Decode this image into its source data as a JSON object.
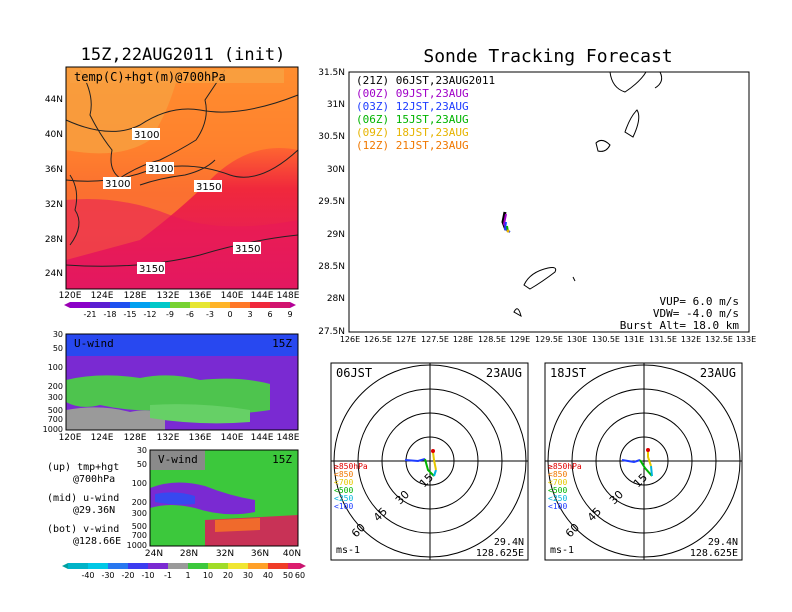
{
  "left": {
    "title": "15Z,22AUG2011 (init)",
    "map_label": "temp(C)+hgt(m)@700hPa",
    "lat_labels": [
      "44N",
      "40N",
      "36N",
      "32N",
      "28N",
      "24N"
    ],
    "lon_labels": [
      "120E",
      "124E",
      "128E",
      "132E",
      "136E",
      "140E",
      "144E",
      "148E"
    ],
    "contours": [
      "3100",
      "3100",
      "3100",
      "3150",
      "3150",
      "3150"
    ],
    "temp_colorbar": [
      "-21",
      "-18",
      "-15",
      "-12",
      "-9",
      "-6",
      "-3",
      "0",
      "3",
      "6",
      "9"
    ],
    "uwind_label": "U-wind",
    "uwind_time": "15Z",
    "uwind_levels": [
      "30",
      "50",
      "100",
      "200",
      "300",
      "500",
      "700",
      "1000"
    ],
    "vwind_label": "V-wind",
    "vwind_time": "15Z",
    "vwind_levels": [
      "30",
      "50",
      "100",
      "200",
      "300",
      "500",
      "700",
      "1000"
    ],
    "vwind_lat_labels": [
      "24N",
      "28N",
      "32N",
      "36N",
      "40N"
    ],
    "wind_colorbar": [
      "-40",
      "-30",
      "-20",
      "-10",
      "-1",
      "1",
      "10",
      "20",
      "30",
      "40",
      "50",
      "60"
    ],
    "notes": [
      {
        "line1": "(up) tmp+hgt",
        "line2": "@700hPa"
      },
      {
        "line1": "(mid) u-wind",
        "line2": "@29.36N"
      },
      {
        "line1": "(bot) v-wind",
        "line2": "@128.66E"
      }
    ]
  },
  "right": {
    "title": "Sonde Tracking Forecast",
    "lat_labels": [
      "31.5N",
      "31N",
      "30.5N",
      "30N",
      "29.5N",
      "29N",
      "28.5N",
      "28N",
      "27.5N"
    ],
    "lon_labels": [
      "126E",
      "126.5E",
      "127E",
      "127.5E",
      "128E",
      "128.5E",
      "129E",
      "129.5E",
      "130E",
      "130.5E",
      "131E",
      "131.5E",
      "132E",
      "132.5E",
      "133E"
    ],
    "legend": [
      {
        "text": "(21Z) 06JST,23AUG2011",
        "color": "#000000"
      },
      {
        "text": "(00Z) 09JST,23AUG",
        "color": "#a000c8"
      },
      {
        "text": "(03Z) 12JST,23AUG",
        "color": "#1e3cff"
      },
      {
        "text": "(06Z) 15JST,23AUG",
        "color": "#00b400"
      },
      {
        "text": "(09Z) 18JST,23AUG",
        "color": "#e6b400"
      },
      {
        "text": "(12Z) 21JST,23AUG",
        "color": "#f07800"
      }
    ],
    "params": [
      "VUP= 6.0 m/s",
      "VDW= -4.0 m/s",
      "Burst Alt= 18.0 km"
    ]
  },
  "hodographs": [
    {
      "time": "06JST",
      "date": "23AUG",
      "rings": [
        "15",
        "30",
        "45",
        "60"
      ],
      "unit": "ms-1",
      "lat": "29.4N",
      "lon": "128.625E",
      "levels": [
        {
          "t": "≥850hPa",
          "c": "#e00000"
        },
        {
          "t": "<850",
          "c": "#f07800"
        },
        {
          "t": "<700",
          "c": "#e6c800"
        },
        {
          "t": "<500",
          "c": "#00b400"
        },
        {
          "t": "<250",
          "c": "#00b4dc"
        },
        {
          "t": "<100",
          "c": "#1e3cff"
        }
      ]
    },
    {
      "time": "18JST",
      "date": "23AUG",
      "rings": [
        "15",
        "30",
        "45",
        "60"
      ],
      "unit": "ms-1",
      "lat": "29.4N",
      "lon": "128.625E",
      "levels": [
        {
          "t": "≥850hPa",
          "c": "#e00000"
        },
        {
          "t": "<850",
          "c": "#f07800"
        },
        {
          "t": "<700",
          "c": "#e6c800"
        },
        {
          "t": "<500",
          "c": "#00b400"
        },
        {
          "t": "<250",
          "c": "#00b4dc"
        },
        {
          "t": "<100",
          "c": "#1e3cff"
        }
      ]
    }
  ],
  "chart_data": [
    {
      "type": "heatmap",
      "title": "15Z,22AUG2011 (init)",
      "label": "temp(C)+hgt(m)@700hPa",
      "xlim": [
        "120E",
        "148E"
      ],
      "ylim": [
        "24N",
        "44N"
      ]
    },
    {
      "type": "heatmap",
      "label": "U-wind",
      "xlim": [
        "120E",
        "148E"
      ],
      "ylim": [
        1000,
        30
      ]
    },
    {
      "type": "heatmap",
      "label": "V-wind",
      "xlim": [
        "24N",
        "40N"
      ],
      "ylim": [
        1000,
        30
      ]
    },
    {
      "type": "line",
      "title": "Sonde Tracking Forecast",
      "xlim": [
        126,
        133
      ],
      "ylim": [
        27.5,
        31.5
      ]
    }
  ]
}
